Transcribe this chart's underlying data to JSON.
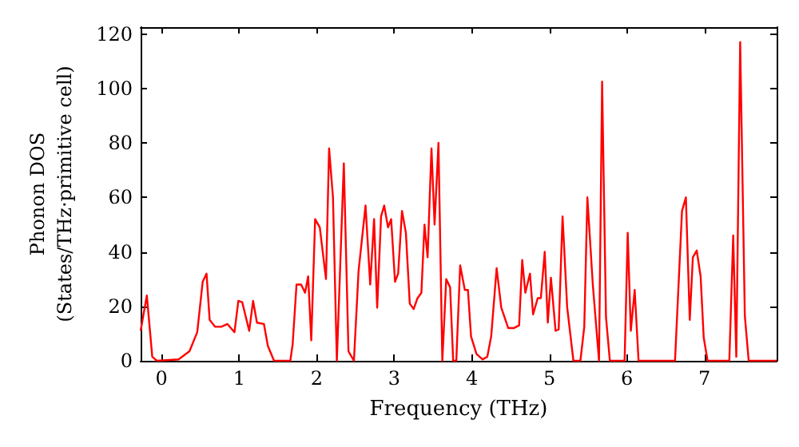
{
  "chart_data": {
    "type": "line",
    "xlabel": "Frequency (THz)",
    "ylabel": "Phonon DOS\n(States/THz·primitive cell)",
    "xlim": [
      -0.27,
      7.93
    ],
    "xticks": [
      0,
      1,
      2,
      3,
      4,
      5,
      6,
      7
    ],
    "ylim": [
      0,
      122.5
    ],
    "yticks": [
      0,
      20,
      40,
      60,
      80,
      100,
      120
    ],
    "marker": "none",
    "line_style": "solid",
    "series": [
      {
        "color": "#ff0000",
        "x": [
          -0.27,
          -0.26,
          -0.19,
          -0.12,
          -0.06,
          0.22,
          0.36,
          0.46,
          0.53,
          0.58,
          0.62,
          0.69,
          0.77,
          0.85,
          0.94,
          0.99,
          1.04,
          1.13,
          1.18,
          1.23,
          1.32,
          1.37,
          1.45,
          1.66,
          1.69,
          1.74,
          1.8,
          1.85,
          1.89,
          1.93,
          1.98,
          2.04,
          2.12,
          2.16,
          2.21,
          2.26,
          2.35,
          2.41,
          2.48,
          2.54,
          2.63,
          2.69,
          2.74,
          2.78,
          2.83,
          2.87,
          2.92,
          2.96,
          3.01,
          3.05,
          3.1,
          3.15,
          3.2,
          3.25,
          3.3,
          3.35,
          3.39,
          3.43,
          3.48,
          3.52,
          3.57,
          3.62,
          3.67,
          3.72,
          3.76,
          3.8,
          3.85,
          3.91,
          3.95,
          3.99,
          4.06,
          4.14,
          4.2,
          4.25,
          4.32,
          4.38,
          4.47,
          4.54,
          4.61,
          4.65,
          4.69,
          4.75,
          4.79,
          4.85,
          4.89,
          4.94,
          4.98,
          5.02,
          5.08,
          5.12,
          5.17,
          5.23,
          5.31,
          5.4,
          5.45,
          5.49,
          5.56,
          5.64,
          5.68,
          5.73,
          5.78,
          5.97,
          6.01,
          6.05,
          6.1,
          6.15,
          6.62,
          6.71,
          6.76,
          6.81,
          6.85,
          6.9,
          6.95,
          6.99,
          7.04,
          7.32,
          7.37,
          7.41,
          7.46,
          7.52,
          7.57,
          7.93
        ],
        "values": [
          11,
          11,
          24,
          1.5,
          0,
          0.5,
          3.5,
          10.5,
          29,
          32,
          15,
          12.5,
          12.5,
          13.5,
          10.5,
          22,
          21.5,
          11,
          22,
          14,
          13.5,
          5.5,
          0,
          0,
          6,
          28,
          28,
          25,
          31,
          7.5,
          52,
          49,
          30,
          78,
          60,
          0,
          72.5,
          3.5,
          0,
          33,
          57,
          28,
          52,
          19.5,
          53,
          57,
          49,
          52,
          29,
          32,
          55,
          47,
          21,
          19,
          23,
          25,
          50,
          38,
          78,
          50,
          80,
          0,
          30,
          27,
          0,
          0,
          35,
          26,
          26,
          9,
          2.5,
          0.5,
          1.5,
          9,
          34,
          19.5,
          12,
          12,
          13,
          37,
          25,
          32,
          17,
          23,
          23,
          40,
          14,
          30.5,
          11,
          11.5,
          53,
          19.5,
          0,
          0,
          12.5,
          60,
          28,
          0,
          102.5,
          16,
          0,
          0,
          47,
          11,
          26,
          0,
          0,
          55,
          60,
          15,
          38,
          40.5,
          31,
          8.5,
          0,
          0,
          46,
          1.5,
          117,
          16.5,
          0,
          0
        ]
      }
    ]
  }
}
